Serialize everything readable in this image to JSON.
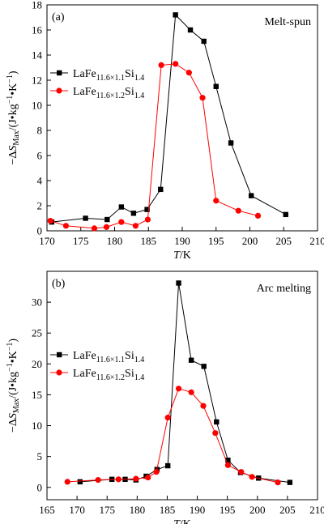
{
  "chart_data": [
    {
      "type": "line",
      "panel_label": "(a)",
      "annotation": "Melt-spun",
      "ylabel": "−ΔS",
      "ylabel_sub": "Max",
      "ylabel_unit": "/(J•kg",
      "ylabel_sup1": "−1",
      "ylabel_mid": "•K",
      "ylabel_sup2": "−1",
      "ylabel_end": ")",
      "xlabel_italic": "T",
      "xlabel_rest": "/K",
      "xlim": [
        170,
        210
      ],
      "ylim": [
        0,
        18
      ],
      "xticks": [
        170,
        175,
        180,
        185,
        190,
        195,
        200,
        205,
        210
      ],
      "yticks": [
        0,
        2,
        4,
        6,
        8,
        10,
        12,
        14,
        16,
        18
      ],
      "legend_position": "upper-left",
      "series": [
        {
          "name_base": "LaFe",
          "name_sub": "11.6×1.1",
          "name_mid": "Si",
          "name_sub2": "1.4",
          "color": "#000000",
          "marker": "square",
          "x": [
            170.7,
            175.7,
            178.9,
            181.0,
            182.8,
            184.8,
            186.8,
            189.0,
            191.2,
            193.2,
            195.0,
            197.2,
            200.2,
            205.3
          ],
          "y": [
            0.7,
            1.0,
            0.9,
            1.9,
            1.4,
            1.7,
            3.3,
            17.2,
            16.0,
            15.1,
            11.5,
            7.0,
            2.8,
            1.3
          ]
        },
        {
          "name_base": "LaFe",
          "name_sub": "11.6×1.2",
          "name_mid": "Si",
          "name_sub2": "1.4",
          "color": "#ff0000",
          "marker": "circle",
          "x": [
            170.5,
            172.8,
            177.0,
            178.8,
            181.0,
            183.1,
            184.9,
            186.9,
            189.0,
            191.0,
            193.0,
            195.0,
            198.3,
            201.2
          ],
          "y": [
            0.8,
            0.4,
            0.2,
            0.3,
            0.7,
            0.4,
            0.9,
            13.2,
            13.3,
            12.6,
            10.6,
            2.4,
            1.6,
            1.2
          ]
        }
      ]
    },
    {
      "type": "line",
      "panel_label": "(b)",
      "annotation": "Arc melting",
      "ylabel": "−ΔS",
      "ylabel_sub": "Max",
      "ylabel_unit": "/(J•kg",
      "ylabel_sup1": "−1",
      "ylabel_mid": "•K",
      "ylabel_sup2": "−1",
      "ylabel_end": ")",
      "xlabel_italic": "T",
      "xlabel_rest": "/K",
      "xlim": [
        165,
        210
      ],
      "ylim": [
        -2,
        35
      ],
      "xticks": [
        165,
        170,
        175,
        180,
        185,
        190,
        195,
        200,
        205,
        210
      ],
      "yticks": [
        0,
        5,
        10,
        15,
        20,
        25,
        30
      ],
      "legend_position": "upper-left",
      "series": [
        {
          "name_base": "LaFe",
          "name_sub": "11.6×1.1",
          "name_mid": "Si",
          "name_sub2": "1.4",
          "color": "#000000",
          "marker": "square",
          "x": [
            170.5,
            175.8,
            178.0,
            179.8,
            181.5,
            183.3,
            185.1,
            186.9,
            189.0,
            191.1,
            193.2,
            195.1,
            197.2,
            200.2,
            205.4
          ],
          "y": [
            0.9,
            1.3,
            1.3,
            1.2,
            1.8,
            2.9,
            3.5,
            33.1,
            20.6,
            19.6,
            10.6,
            4.4,
            2.4,
            1.5,
            0.8
          ]
        },
        {
          "name_base": "LaFe",
          "name_sub": "11.6×1.2",
          "name_mid": "Si",
          "name_sub2": "1.4",
          "color": "#ff0000",
          "marker": "circle",
          "x": [
            168.4,
            173.5,
            176.9,
            179.8,
            181.8,
            183.2,
            185.1,
            186.9,
            189.0,
            191.0,
            193.0,
            195.1,
            197.3,
            199.1,
            203.4
          ],
          "y": [
            0.9,
            1.2,
            1.3,
            1.4,
            1.6,
            2.5,
            11.3,
            16.0,
            15.4,
            13.2,
            8.8,
            3.6,
            2.5,
            1.7,
            0.8
          ]
        }
      ]
    }
  ]
}
